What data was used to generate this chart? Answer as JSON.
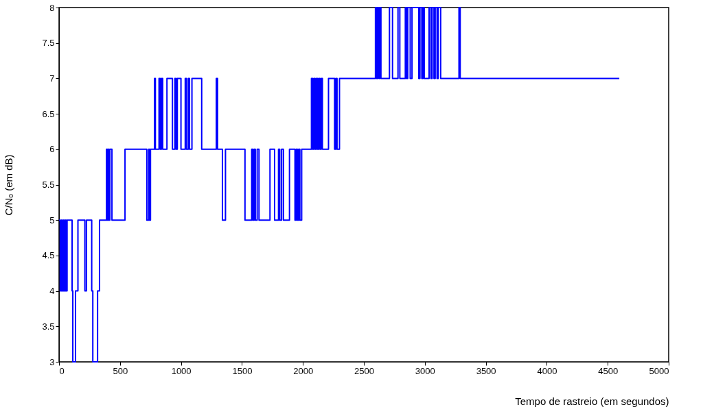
{
  "chart_data": {
    "type": "step",
    "xlabel": "Tempo de rastreio (em segundos)",
    "ylabel": "C/Nₒ (em dB)",
    "x": [
      0,
      10,
      18,
      26,
      34,
      42,
      50,
      58,
      66,
      107,
      113,
      135,
      155,
      212,
      225,
      268,
      277,
      316,
      332,
      389,
      396,
      403,
      410,
      417,
      434,
      541,
      720,
      735,
      742,
      750,
      783,
      790,
      820,
      830,
      840,
      850,
      885,
      930,
      950,
      960,
      970,
      1000,
      1035,
      1045,
      1060,
      1070,
      1090,
      1170,
      1290,
      1300,
      1340,
      1365,
      1525,
      1580,
      1590,
      1600,
      1610,
      1625,
      1640,
      1730,
      1768,
      1800,
      1810,
      1825,
      1840,
      1890,
      1935,
      1945,
      1955,
      1965,
      1975,
      1990,
      2070,
      2080,
      2090,
      2100,
      2110,
      2120,
      2130,
      2140,
      2150,
      2160,
      2210,
      2260,
      2270,
      2280,
      2300,
      2595,
      2605,
      2615,
      2625,
      2630,
      2640,
      2710,
      2735,
      2780,
      2795,
      2840,
      2850,
      2860,
      2880,
      2895,
      2950,
      2960,
      2975,
      2985,
      2995,
      3035,
      3050,
      3060,
      3075,
      3085,
      3100,
      3110,
      3130,
      3280,
      3290,
      4595
    ],
    "series": [
      {
        "color": "#0000ff",
        "values": [
          5,
          4,
          5,
          4,
          5,
          4,
          5,
          4,
          5,
          4,
          3,
          4,
          5,
          4,
          5,
          4,
          3,
          4,
          5,
          6,
          5,
          6,
          5,
          6,
          5,
          6,
          5,
          6,
          5,
          6,
          7,
          6,
          7,
          6,
          7,
          6,
          7,
          6,
          7,
          6,
          7,
          6,
          7,
          6,
          7,
          6,
          7,
          6,
          7,
          6,
          5,
          6,
          5,
          6,
          5,
          6,
          5,
          6,
          5,
          6,
          5,
          6,
          5,
          6,
          5,
          6,
          5,
          6,
          5,
          6,
          5,
          6,
          7,
          6,
          7,
          6,
          7,
          6,
          7,
          6,
          7,
          6,
          7,
          6,
          7,
          6,
          7,
          8,
          7,
          8,
          7,
          8,
          7,
          8,
          7,
          8,
          7,
          8,
          7,
          8,
          7,
          8,
          7,
          8,
          7,
          8,
          7,
          8,
          7,
          8,
          7,
          8,
          7,
          8,
          7,
          8,
          7,
          7
        ]
      }
    ],
    "xlim": [
      0,
      5000
    ],
    "ylim": [
      3,
      8
    ],
    "xticks": [
      0,
      500,
      1000,
      1500,
      2000,
      2500,
      3000,
      3500,
      4000,
      4500,
      5000
    ],
    "yticks": [
      3,
      3.5,
      4,
      4.5,
      5,
      5.5,
      6,
      6.5,
      7,
      7.5,
      8
    ],
    "grid": false
  }
}
